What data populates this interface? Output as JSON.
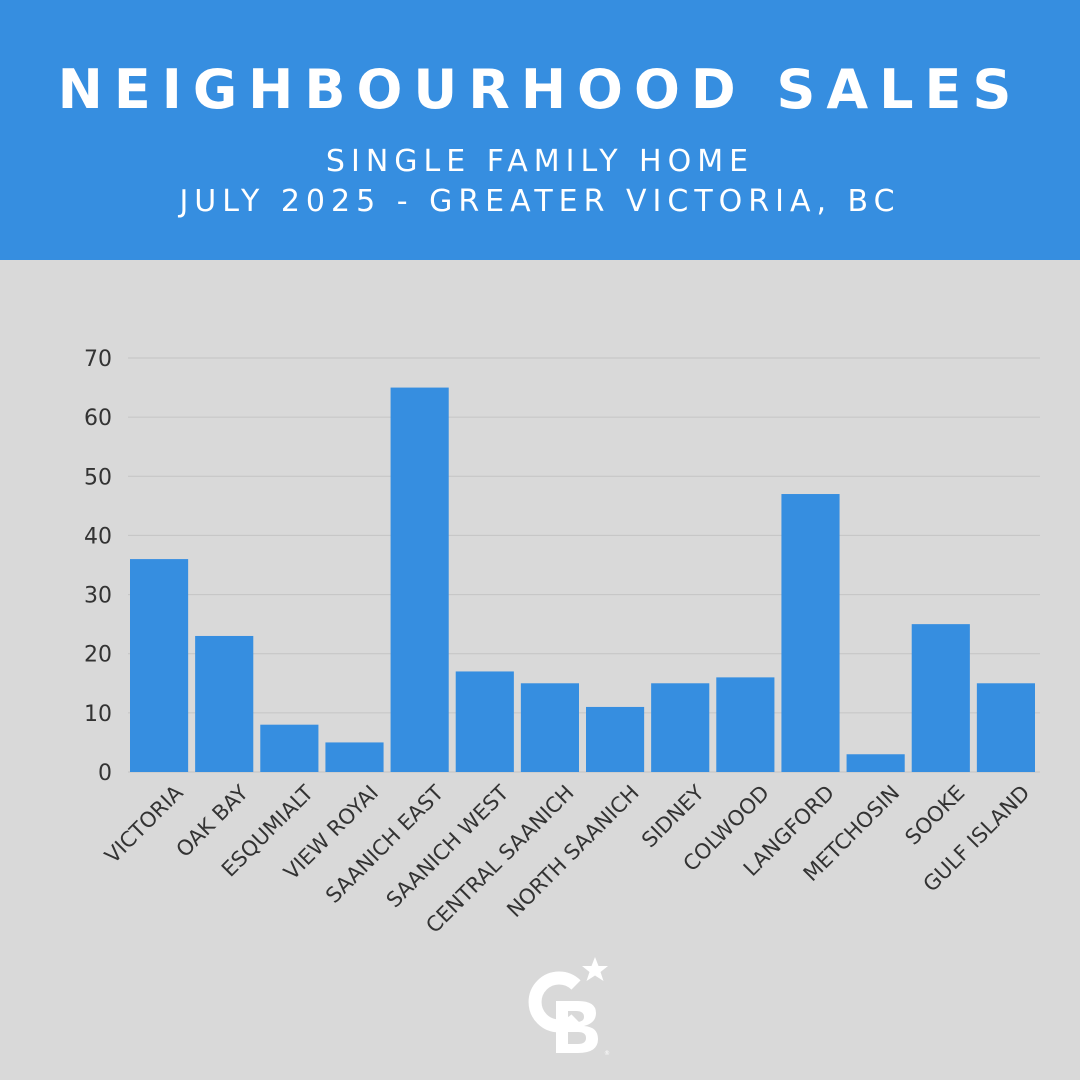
{
  "header": {
    "title": "NEIGHBOURHOOD SALES",
    "subtitle_line1": "SINGLE FAMILY HOME",
    "subtitle_line2": "JULY 2025 - GREATER VICTORIA, BC"
  },
  "colors": {
    "header_bg": "#368ee0",
    "bar": "#368ee0",
    "background": "#d9d9d9",
    "text": "#333333"
  },
  "chart_data": {
    "type": "bar",
    "categories": [
      "VICTORIA",
      "OAK BAY",
      "ESQUMIALT",
      "VIEW ROYAI",
      "SAANICH EAST",
      "SAANICH WEST",
      "CENTRAL SAANICH",
      "NORTH SAANICH",
      "SIDNEY",
      "COLWOOD",
      "LANGFORD",
      "METCHOSIN",
      "SOOKE",
      "GULF ISLAND"
    ],
    "values": [
      36,
      23,
      8,
      5,
      65,
      17,
      15,
      11,
      15,
      16,
      47,
      3,
      25,
      15
    ],
    "yticks": [
      "0",
      "10",
      "20",
      "30",
      "40",
      "50",
      "60",
      "70"
    ],
    "ylim": [
      0,
      70
    ],
    "grid": true
  },
  "logo": {
    "icon": "coldwell-banker-cb-logo"
  }
}
